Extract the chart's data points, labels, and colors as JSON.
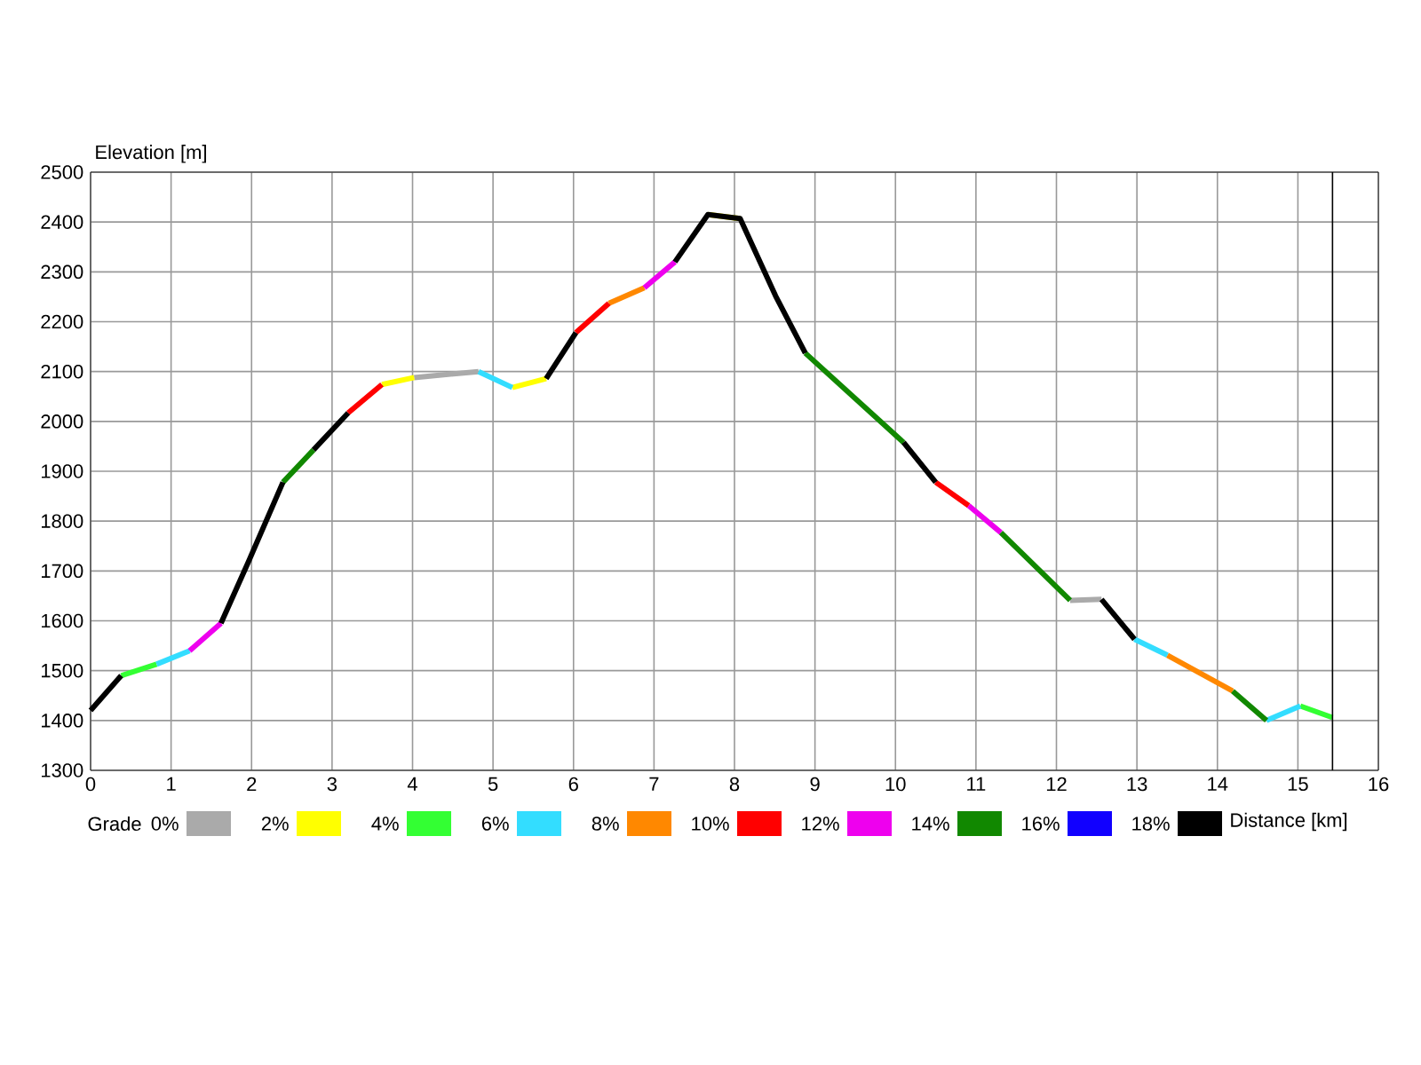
{
  "chart_data": {
    "type": "line",
    "xlabel": "Distance [km]",
    "ylabel": "Elevation [m]",
    "legend_title": "Grade",
    "x": [
      0,
      0.38,
      0.82,
      1.23,
      1.62,
      1.96,
      2.39,
      2.77,
      3.2,
      3.62,
      4.02,
      4.82,
      5.24,
      5.66,
      6.03,
      6.44,
      6.88,
      7.26,
      7.67,
      8.07,
      8.51,
      8.88,
      10.1,
      10.5,
      10.91,
      11.31,
      12.17,
      12.56,
      12.97,
      13.38,
      14.19,
      14.61,
      15.03,
      15.43
    ],
    "series": [
      {
        "color": "#aaaaaa",
        "values": [
          null,
          null,
          null,
          null,
          null,
          null,
          null,
          null,
          null,
          null,
          2088,
          2100,
          null,
          null,
          null,
          null,
          null,
          null,
          null,
          null,
          null,
          null,
          null,
          null,
          null,
          null,
          1641,
          1643,
          null,
          null,
          null,
          null,
          null,
          null
        ]
      },
      {
        "color": "#ffff00",
        "values": [
          null,
          null,
          null,
          null,
          null,
          null,
          null,
          null,
          null,
          2074,
          2088,
          null,
          2068,
          2086,
          null,
          null,
          null,
          null,
          2415,
          2407,
          null,
          null,
          null,
          null,
          null,
          null,
          null,
          null,
          null,
          null,
          null,
          null,
          null,
          null
        ]
      },
      {
        "color": "#33ff33",
        "values": [
          null,
          1490,
          1513,
          null,
          null,
          null,
          null,
          null,
          null,
          null,
          null,
          null,
          null,
          null,
          null,
          null,
          null,
          null,
          null,
          null,
          null,
          null,
          null,
          null,
          null,
          null,
          null,
          null,
          null,
          null,
          null,
          null,
          1429,
          1406
        ]
      },
      {
        "color": "#33ddff",
        "values": [
          null,
          null,
          1513,
          1540,
          null,
          null,
          null,
          null,
          null,
          null,
          null,
          2100,
          2068,
          null,
          null,
          null,
          null,
          null,
          null,
          null,
          null,
          null,
          null,
          null,
          null,
          null,
          null,
          null,
          1563,
          1531,
          null,
          1400,
          1429,
          null
        ]
      },
      {
        "color": "#ff8800",
        "values": [
          null,
          null,
          null,
          null,
          null,
          null,
          null,
          null,
          null,
          null,
          null,
          null,
          null,
          null,
          null,
          2237,
          2268,
          null,
          null,
          null,
          null,
          null,
          null,
          null,
          null,
          null,
          null,
          null,
          null,
          1531,
          1459,
          null,
          null,
          null
        ]
      },
      {
        "color": "#ff0000",
        "values": [
          null,
          null,
          null,
          null,
          null,
          null,
          null,
          null,
          2017,
          2074,
          null,
          null,
          null,
          null,
          2178,
          2237,
          null,
          null,
          null,
          null,
          null,
          null,
          null,
          1878,
          1831,
          null,
          null,
          null,
          null,
          null,
          null,
          null,
          null,
          null
        ]
      },
      {
        "color": "#ee00ee",
        "values": [
          null,
          null,
          null,
          1540,
          1595,
          null,
          null,
          null,
          null,
          null,
          null,
          null,
          null,
          null,
          null,
          null,
          2268,
          2320,
          null,
          null,
          null,
          null,
          null,
          null,
          1831,
          1777,
          null,
          null,
          null,
          null,
          null,
          null,
          null,
          null
        ]
      },
      {
        "color": "#118800",
        "values": [
          null,
          null,
          null,
          null,
          null,
          null,
          1878,
          1943,
          null,
          null,
          null,
          null,
          null,
          null,
          null,
          null,
          null,
          null,
          null,
          null,
          null,
          2137,
          1958,
          null,
          null,
          1777,
          1641,
          null,
          null,
          null,
          1459,
          1400,
          null,
          null
        ]
      },
      {
        "color": "#1100ff",
        "values": [
          null,
          null,
          null,
          null,
          null,
          null,
          null,
          null,
          null,
          null,
          null,
          null,
          null,
          null,
          null,
          null,
          null,
          null,
          null,
          null,
          null,
          null,
          null,
          null,
          null,
          null,
          null,
          null,
          null,
          null,
          null,
          null,
          null,
          null
        ]
      },
      {
        "color": "#000000",
        "values": [
          1420,
          1490,
          null,
          null,
          1595,
          1718,
          1878,
          null,
          null,
          null,
          null,
          null,
          null,
          2086,
          2178,
          null,
          null,
          2320,
          2415,
          2407,
          2252,
          2137,
          null,
          null,
          null,
          null,
          null,
          1643,
          1563,
          null,
          null,
          null,
          null,
          null
        ]
      },
      {
        "color": "#000000",
        "values": [
          null,
          null,
          null,
          null,
          null,
          null,
          null,
          1943,
          2017,
          null,
          null,
          null,
          null,
          null,
          null,
          null,
          null,
          null,
          null,
          null,
          null,
          null,
          1958,
          1878,
          null,
          null,
          null,
          null,
          null,
          null,
          null,
          null,
          null,
          null
        ]
      }
    ],
    "xlim": [
      0,
      16
    ],
    "xticks": [
      0,
      1,
      2,
      3,
      4,
      5,
      6,
      7,
      8,
      9,
      10,
      11,
      12,
      13,
      14,
      15,
      16
    ],
    "ylim": [
      1300,
      2500
    ],
    "yticks": [
      1300,
      1400,
      1500,
      1600,
      1700,
      1800,
      1900,
      2000,
      2100,
      2200,
      2300,
      2400,
      2500
    ],
    "annotations": [
      "0%",
      "2%",
      "4%",
      "6%",
      "8%",
      "10%",
      "12%",
      "14%",
      "16%",
      "18%"
    ],
    "ref_lines": [
      {
        "axis": "x",
        "value": 15.43,
        "color": "#000000"
      }
    ],
    "grid": true,
    "line_style": "solid"
  }
}
